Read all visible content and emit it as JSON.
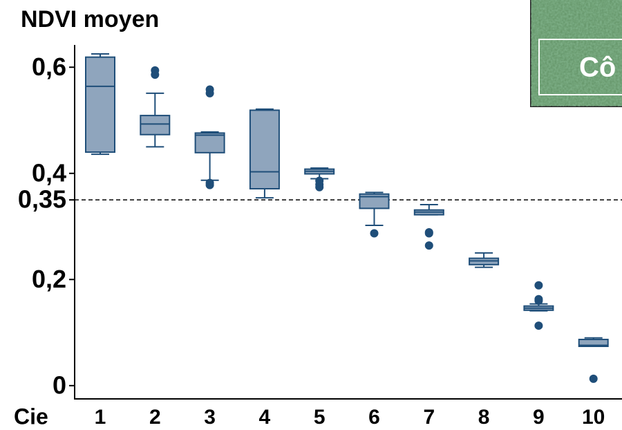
{
  "chart_data": {
    "type": "box",
    "title": "NDVI moyen",
    "x_label": "Cie",
    "inset_label": "Cô",
    "categories": [
      "1",
      "2",
      "3",
      "4",
      "5",
      "6",
      "7",
      "8",
      "9",
      "10"
    ],
    "color": "#8fa5bd",
    "edge_color": "#1f4e79",
    "boxes": [
      {
        "whislo": 0.436,
        "q1": 0.44,
        "med": 0.564,
        "q3": 0.619,
        "whishi": 0.625,
        "fliers": []
      },
      {
        "whislo": 0.45,
        "q1": 0.473,
        "med": 0.493,
        "q3": 0.509,
        "whishi": 0.551,
        "fliers": [
          0.594,
          0.586
        ]
      },
      {
        "whislo": 0.387,
        "q1": 0.439,
        "med": 0.472,
        "q3": 0.476,
        "whishi": 0.478,
        "fliers": [
          0.558,
          0.551,
          0.382,
          0.378
        ]
      },
      {
        "whislo": 0.354,
        "q1": 0.371,
        "med": 0.403,
        "q3": 0.519,
        "whishi": 0.521,
        "fliers": []
      },
      {
        "whislo": 0.39,
        "q1": 0.399,
        "med": 0.404,
        "q3": 0.408,
        "whishi": 0.41,
        "fliers": [
          0.386,
          0.379,
          0.374
        ]
      },
      {
        "whislo": 0.302,
        "q1": 0.334,
        "med": 0.356,
        "q3": 0.361,
        "whishi": 0.364,
        "fliers": [
          0.287
        ]
      },
      {
        "whislo": 0.322,
        "q1": 0.322,
        "med": 0.327,
        "q3": 0.331,
        "whishi": 0.341,
        "fliers": [
          0.289,
          0.287,
          0.264
        ]
      },
      {
        "whislo": 0.223,
        "q1": 0.228,
        "med": 0.235,
        "q3": 0.24,
        "whishi": 0.25,
        "fliers": []
      },
      {
        "whislo": 0.141,
        "q1": 0.142,
        "med": 0.146,
        "q3": 0.15,
        "whishi": 0.154,
        "fliers": [
          0.189,
          0.163,
          0.16,
          0.113
        ]
      },
      {
        "whislo": 0.074,
        "q1": 0.074,
        "med": 0.076,
        "q3": 0.087,
        "whishi": 0.09,
        "fliers": [
          0.013
        ]
      }
    ],
    "ylim": [
      -0.025,
      0.642
    ],
    "yticks": [
      0,
      {
        "value": 0.2,
        "label": "0,2"
      },
      {
        "value": 0.35,
        "label": "0,35"
      },
      {
        "value": 0.4,
        "label": "0,4"
      },
      {
        "value": 0.6,
        "label": "0,6"
      }
    ],
    "hline": 0.35
  }
}
